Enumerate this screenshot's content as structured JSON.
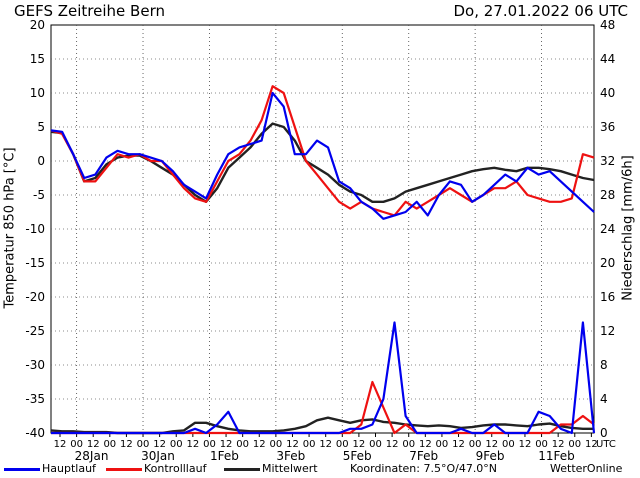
{
  "header": {
    "title": "GEFS  Zeitreihe Bern",
    "run": "Do, 27.01.2022 06 UTC"
  },
  "legend": {
    "hauptlauf": "Hauptlauf",
    "kontrolllauf": "Kontrolllauf",
    "mittelwert": "Mittelwert",
    "koordinaten": "Koordinaten: 7.5°O/47.0°N",
    "brand": "WetterOnline"
  },
  "colors": {
    "hauptlauf": "#0000ee",
    "kontrolllauf": "#ee1111",
    "mittelwert": "#222222",
    "grid": "#555555"
  },
  "chart_data": {
    "type": "line",
    "ylabel_left": "Temperatur 850 hPa [°C]",
    "ylabel_right": "Niederschlag [mm/6h]",
    "ylim_left": [
      -40,
      20
    ],
    "ylim_right": [
      0,
      48
    ],
    "yticks_left": [
      20,
      15,
      10,
      5,
      0,
      -5,
      -10,
      -15,
      -20,
      -25,
      -30,
      -35,
      -40
    ],
    "yticks_right": [
      48,
      44,
      40,
      36,
      32,
      28,
      24,
      20,
      16,
      12,
      8,
      4,
      0
    ],
    "x_hours": [
      "12",
      "00",
      "12",
      "00",
      "12",
      "00",
      "12",
      "00",
      "12",
      "00",
      "12",
      "00",
      "12",
      "00",
      "12",
      "00",
      "12",
      "00",
      "12",
      "00",
      "12",
      "00",
      "12",
      "00",
      "12",
      "00",
      "12",
      "00",
      "12",
      "00",
      "12",
      "00",
      "12"
    ],
    "x_end_label": "UTC",
    "date_labels": [
      "28Jan",
      "30Jan",
      "1Feb",
      "3Feb",
      "5Feb",
      "7Feb",
      "9Feb",
      "11Feb"
    ],
    "series_temperature": [
      {
        "name": "Hauptlauf",
        "color": "#0000ee",
        "values": [
          4.5,
          4.3,
          1,
          -2.5,
          -2,
          0.5,
          1.5,
          1,
          1,
          0.5,
          0,
          -1.5,
          -3.5,
          -4.5,
          -5.5,
          -2,
          1,
          2,
          2.5,
          3,
          10,
          8,
          1,
          1,
          3,
          2,
          -3,
          -4,
          -6,
          -7,
          -8.5,
          -8,
          -7.5,
          -6,
          -8,
          -5,
          -3,
          -3.5,
          -6,
          -5,
          -3.5,
          -2,
          -3,
          -1,
          -2,
          -1.5,
          -3,
          -4.5,
          -6,
          -7.5
        ]
      },
      {
        "name": "Kontrolllauf",
        "color": "#ee1111",
        "values": [
          4.5,
          4,
          1,
          -3,
          -3,
          -1,
          1,
          0.5,
          1,
          0,
          0,
          -2,
          -4,
          -5.5,
          -6,
          -3,
          0,
          1,
          3,
          6,
          11,
          10,
          5,
          0,
          -2,
          -4,
          -6,
          -7,
          -6,
          -7,
          -7.5,
          -8,
          -6,
          -7,
          -6,
          -5,
          -4,
          -5,
          -6,
          -5,
          -4,
          -4,
          -3,
          -5,
          -5.5,
          -6,
          -6,
          -5.5,
          1,
          0.5
        ]
      },
      {
        "name": "Mittelwert",
        "color": "#222222",
        "values": [
          4.3,
          4.1,
          1,
          -3,
          -2.5,
          -0.5,
          0.5,
          0.8,
          0.8,
          0,
          -1,
          -2,
          -3.5,
          -5,
          -6,
          -4,
          -1,
          0.5,
          2,
          4,
          5.5,
          5,
          3,
          0,
          -1,
          -2,
          -3.5,
          -4.5,
          -5,
          -6,
          -6,
          -5.5,
          -4.5,
          -4,
          -3.5,
          -3,
          -2.5,
          -2,
          -1.5,
          -1.2,
          -1,
          -1.3,
          -1.5,
          -1,
          -1,
          -1.2,
          -1.5,
          -2,
          -2.5,
          -2.8
        ]
      }
    ],
    "series_precip": [
      {
        "name": "Hauptlauf",
        "color": "#0000ee",
        "values": [
          0,
          0,
          0,
          0,
          0,
          0,
          0,
          0,
          0,
          0,
          0,
          0,
          0,
          0.5,
          0,
          1,
          2.5,
          0,
          0,
          0,
          0,
          0,
          0,
          0,
          0,
          0,
          0,
          0.5,
          0.5,
          1,
          4,
          13,
          2,
          0,
          0,
          0,
          0,
          0.5,
          0,
          0,
          1,
          0,
          0,
          0,
          2.5,
          2,
          0.5,
          0,
          13,
          0
        ]
      },
      {
        "name": "Kontrolllauf",
        "color": "#ee1111",
        "values": [
          0,
          0,
          0,
          0,
          0,
          0,
          0,
          0,
          0,
          0,
          0,
          0,
          0,
          0,
          0,
          0,
          0,
          0,
          0,
          0,
          0,
          0,
          0,
          0,
          0,
          0,
          0,
          0,
          1,
          6,
          3,
          0,
          1,
          0,
          0,
          0,
          0,
          0,
          0,
          0,
          0,
          0,
          0,
          0,
          0,
          0,
          1,
          1,
          2,
          1
        ]
      },
      {
        "name": "Mittelwert",
        "color": "#222222",
        "values": [
          0.3,
          0.2,
          0.2,
          0.1,
          0.1,
          0.1,
          0,
          0,
          0,
          0,
          0,
          0.2,
          0.3,
          1.2,
          1.2,
          0.8,
          0.5,
          0.3,
          0.2,
          0.2,
          0.2,
          0.3,
          0.5,
          0.8,
          1.5,
          1.8,
          1.5,
          1.2,
          1.5,
          1.6,
          1.3,
          1.2,
          1.0,
          0.9,
          0.8,
          0.9,
          0.8,
          0.6,
          0.7,
          0.9,
          1.0,
          1.0,
          0.9,
          0.8,
          1.0,
          1.1,
          0.8,
          0.6,
          0.5,
          0.5
        ]
      }
    ]
  }
}
